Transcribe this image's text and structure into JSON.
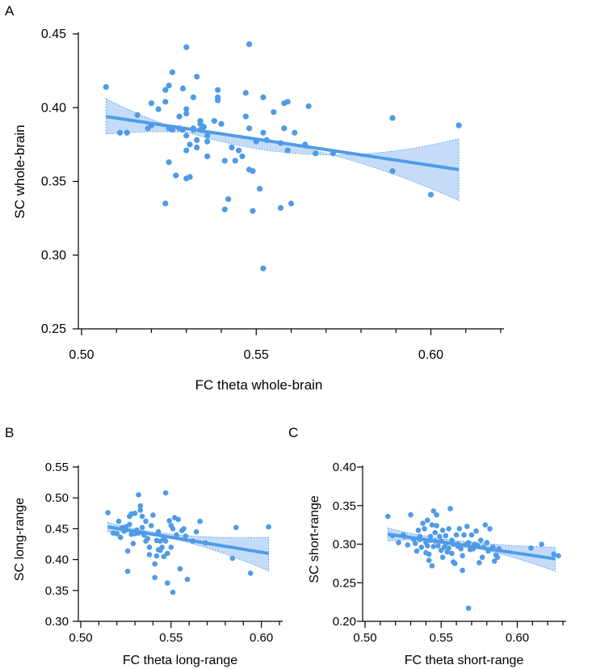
{
  "colors": {
    "point": "#4f9be8",
    "line": "#4f9be8",
    "band_fill": "#c5dcf8",
    "band_edge": "#4f9be8",
    "axis": "#000000"
  },
  "chart_data": [
    {
      "panel": "A",
      "type": "scatter",
      "xlabel": "FC theta whole-brain",
      "ylabel": "SC whole-brain",
      "xlim": [
        0.5,
        0.62
      ],
      "ylim": [
        0.25,
        0.45
      ],
      "xticks": [
        "0.50",
        "0.55",
        "0.60"
      ],
      "yticks": [
        "0.25",
        "0.30",
        "0.35",
        "0.40",
        "0.45"
      ],
      "x_minor_step": 0.01,
      "fit": {
        "x": [
          0.507,
          0.608
        ],
        "y": [
          0.394,
          0.358
        ],
        "ci_upper": [
          0.406,
          0.379
        ],
        "ci_lower": [
          0.382,
          0.337
        ],
        "ci_mid": [
          0.556,
          0.37,
          0.376
        ]
      },
      "points": [
        [
          0.507,
          0.414
        ],
        [
          0.511,
          0.383
        ],
        [
          0.513,
          0.383
        ],
        [
          0.516,
          0.395
        ],
        [
          0.519,
          0.386
        ],
        [
          0.52,
          0.403
        ],
        [
          0.52,
          0.388
        ],
        [
          0.522,
          0.399
        ],
        [
          0.524,
          0.335
        ],
        [
          0.524,
          0.404
        ],
        [
          0.524,
          0.412
        ],
        [
          0.525,
          0.415
        ],
        [
          0.525,
          0.386
        ],
        [
          0.525,
          0.363
        ],
        [
          0.526,
          0.385
        ],
        [
          0.526,
          0.424
        ],
        [
          0.527,
          0.354
        ],
        [
          0.528,
          0.386
        ],
        [
          0.528,
          0.394
        ],
        [
          0.529,
          0.413
        ],
        [
          0.529,
          0.385
        ],
        [
          0.53,
          0.441
        ],
        [
          0.53,
          0.399
        ],
        [
          0.53,
          0.396
        ],
        [
          0.53,
          0.381
        ],
        [
          0.53,
          0.371
        ],
        [
          0.53,
          0.352
        ],
        [
          0.531,
          0.375
        ],
        [
          0.531,
          0.353
        ],
        [
          0.532,
          0.385
        ],
        [
          0.532,
          0.407
        ],
        [
          0.532,
          0.386
        ],
        [
          0.533,
          0.421
        ],
        [
          0.533,
          0.378
        ],
        [
          0.533,
          0.373
        ],
        [
          0.534,
          0.389
        ],
        [
          0.534,
          0.391
        ],
        [
          0.534,
          0.385
        ],
        [
          0.535,
          0.387
        ],
        [
          0.536,
          0.381
        ],
        [
          0.536,
          0.377
        ],
        [
          0.536,
          0.367
        ],
        [
          0.538,
          0.391
        ],
        [
          0.539,
          0.405
        ],
        [
          0.539,
          0.407
        ],
        [
          0.539,
          0.412
        ],
        [
          0.54,
          0.389
        ],
        [
          0.541,
          0.364
        ],
        [
          0.541,
          0.331
        ],
        [
          0.542,
          0.338
        ],
        [
          0.543,
          0.373
        ],
        [
          0.544,
          0.364
        ],
        [
          0.545,
          0.371
        ],
        [
          0.546,
          0.367
        ],
        [
          0.547,
          0.41
        ],
        [
          0.547,
          0.394
        ],
        [
          0.548,
          0.386
        ],
        [
          0.548,
          0.358
        ],
        [
          0.548,
          0.443
        ],
        [
          0.549,
          0.33
        ],
        [
          0.549,
          0.357
        ],
        [
          0.55,
          0.377
        ],
        [
          0.551,
          0.345
        ],
        [
          0.552,
          0.383
        ],
        [
          0.552,
          0.291
        ],
        [
          0.552,
          0.407
        ],
        [
          0.553,
          0.378
        ],
        [
          0.555,
          0.397
        ],
        [
          0.557,
          0.332
        ],
        [
          0.557,
          0.376
        ],
        [
          0.558,
          0.386
        ],
        [
          0.558,
          0.403
        ],
        [
          0.559,
          0.404
        ],
        [
          0.559,
          0.371
        ],
        [
          0.56,
          0.335
        ],
        [
          0.561,
          0.383
        ],
        [
          0.564,
          0.375
        ],
        [
          0.565,
          0.401
        ],
        [
          0.567,
          0.369
        ],
        [
          0.572,
          0.369
        ],
        [
          0.589,
          0.357
        ],
        [
          0.589,
          0.393
        ],
        [
          0.6,
          0.341
        ],
        [
          0.608,
          0.388
        ]
      ]
    },
    {
      "panel": "B",
      "type": "scatter",
      "xlabel": "FC theta long-range",
      "ylabel": "SC long-range",
      "xlim": [
        0.5,
        0.61
      ],
      "ylim": [
        0.3,
        0.55
      ],
      "xticks": [
        "0.50",
        "0.55",
        "0.60"
      ],
      "yticks": [
        "0.30",
        "0.35",
        "0.40",
        "0.45",
        "0.50",
        "0.55"
      ],
      "x_minor_step": 0.01,
      "fit": {
        "x": [
          0.515,
          0.604
        ],
        "y": [
          0.453,
          0.41
        ],
        "ci_upper": [
          0.46,
          0.436
        ],
        "ci_lower": [
          0.445,
          0.382
        ],
        "ci_mid": [
          0.548,
          0.44,
          0.432
        ]
      },
      "points": [
        [
          0.515,
          0.476
        ],
        [
          0.518,
          0.443
        ],
        [
          0.52,
          0.442
        ],
        [
          0.521,
          0.462
        ],
        [
          0.522,
          0.436
        ],
        [
          0.523,
          0.452
        ],
        [
          0.524,
          0.446
        ],
        [
          0.525,
          0.453
        ],
        [
          0.526,
          0.414
        ],
        [
          0.526,
          0.381
        ],
        [
          0.527,
          0.457
        ],
        [
          0.527,
          0.47
        ],
        [
          0.528,
          0.474
        ],
        [
          0.528,
          0.441
        ],
        [
          0.529,
          0.426
        ],
        [
          0.53,
          0.475
        ],
        [
          0.53,
          0.442
        ],
        [
          0.531,
          0.448
        ],
        [
          0.532,
          0.443
        ],
        [
          0.532,
          0.505
        ],
        [
          0.533,
          0.487
        ],
        [
          0.533,
          0.48
        ],
        [
          0.534,
          0.47
        ],
        [
          0.534,
          0.452
        ],
        [
          0.535,
          0.443
        ],
        [
          0.535,
          0.44
        ],
        [
          0.536,
          0.43
        ],
        [
          0.536,
          0.462
        ],
        [
          0.537,
          0.434
        ],
        [
          0.538,
          0.408
        ],
        [
          0.538,
          0.42
        ],
        [
          0.539,
          0.455
        ],
        [
          0.54,
          0.472
        ],
        [
          0.541,
          0.393
        ],
        [
          0.541,
          0.371
        ],
        [
          0.542,
          0.431
        ],
        [
          0.542,
          0.406
        ],
        [
          0.543,
          0.416
        ],
        [
          0.543,
          0.445
        ],
        [
          0.544,
          0.43
        ],
        [
          0.544,
          0.415
        ],
        [
          0.545,
          0.42
        ],
        [
          0.546,
          0.405
        ],
        [
          0.546,
          0.435
        ],
        [
          0.547,
          0.508
        ],
        [
          0.547,
          0.43
        ],
        [
          0.548,
          0.362
        ],
        [
          0.548,
          0.41
        ],
        [
          0.549,
          0.463
        ],
        [
          0.55,
          0.42
        ],
        [
          0.55,
          0.455
        ],
        [
          0.551,
          0.45
        ],
        [
          0.551,
          0.347
        ],
        [
          0.552,
          0.468
        ],
        [
          0.553,
          0.44
        ],
        [
          0.554,
          0.465
        ],
        [
          0.555,
          0.385
        ],
        [
          0.556,
          0.447
        ],
        [
          0.557,
          0.45
        ],
        [
          0.558,
          0.438
        ],
        [
          0.559,
          0.368
        ],
        [
          0.562,
          0.43
        ],
        [
          0.564,
          0.445
        ],
        [
          0.566,
          0.462
        ],
        [
          0.569,
          0.427
        ],
        [
          0.584,
          0.402
        ],
        [
          0.586,
          0.452
        ],
        [
          0.594,
          0.378
        ],
        [
          0.604,
          0.453
        ]
      ]
    },
    {
      "panel": "C",
      "type": "scatter",
      "xlabel": "FC theta short-range",
      "ylabel": "SC short-range",
      "xlim": [
        0.5,
        0.63
      ],
      "ylim": [
        0.2,
        0.4
      ],
      "xticks": [
        "0.50",
        "0.55",
        "0.60"
      ],
      "yticks": [
        "0.20",
        "0.25",
        "0.30",
        "0.35",
        "0.40"
      ],
      "x_minor_step": 0.01,
      "fit": {
        "x": [
          0.515,
          0.625
        ],
        "y": [
          0.313,
          0.281
        ],
        "ci_upper": [
          0.321,
          0.296
        ],
        "ci_lower": [
          0.304,
          0.265
        ],
        "ci_mid": [
          0.556,
          0.304,
          0.299
        ]
      },
      "points": [
        [
          0.515,
          0.336
        ],
        [
          0.518,
          0.311
        ],
        [
          0.522,
          0.302
        ],
        [
          0.525,
          0.312
        ],
        [
          0.526,
          0.31
        ],
        [
          0.528,
          0.299
        ],
        [
          0.53,
          0.338
        ],
        [
          0.532,
          0.306
        ],
        [
          0.533,
          0.301
        ],
        [
          0.534,
          0.291
        ],
        [
          0.535,
          0.318
        ],
        [
          0.536,
          0.31
        ],
        [
          0.536,
          0.306
        ],
        [
          0.537,
          0.296
        ],
        [
          0.538,
          0.327
        ],
        [
          0.539,
          0.32
        ],
        [
          0.54,
          0.302
        ],
        [
          0.54,
          0.289
        ],
        [
          0.541,
          0.298
        ],
        [
          0.541,
          0.331
        ],
        [
          0.542,
          0.279
        ],
        [
          0.542,
          0.287
        ],
        [
          0.543,
          0.31
        ],
        [
          0.543,
          0.305
        ],
        [
          0.544,
          0.325
        ],
        [
          0.544,
          0.272
        ],
        [
          0.545,
          0.297
        ],
        [
          0.545,
          0.343
        ],
        [
          0.546,
          0.315
        ],
        [
          0.546,
          0.304
        ],
        [
          0.547,
          0.324
        ],
        [
          0.547,
          0.338
        ],
        [
          0.548,
          0.298
        ],
        [
          0.549,
          0.31
        ],
        [
          0.55,
          0.304
        ],
        [
          0.55,
          0.292
        ],
        [
          0.551,
          0.318
        ],
        [
          0.551,
          0.283
        ],
        [
          0.552,
          0.296
        ],
        [
          0.553,
          0.311
        ],
        [
          0.553,
          0.301
        ],
        [
          0.554,
          0.29
        ],
        [
          0.555,
          0.295
        ],
        [
          0.555,
          0.32
        ],
        [
          0.556,
          0.346
        ],
        [
          0.557,
          0.305
        ],
        [
          0.557,
          0.288
        ],
        [
          0.558,
          0.277
        ],
        [
          0.558,
          0.3
        ],
        [
          0.559,
          0.275
        ],
        [
          0.56,
          0.312
        ],
        [
          0.561,
          0.3
        ],
        [
          0.561,
          0.297
        ],
        [
          0.562,
          0.32
        ],
        [
          0.563,
          0.294
        ],
        [
          0.564,
          0.285
        ],
        [
          0.564,
          0.266
        ],
        [
          0.565,
          0.312
        ],
        [
          0.566,
          0.299
        ],
        [
          0.567,
          0.323
        ],
        [
          0.568,
          0.302
        ],
        [
          0.568,
          0.217
        ],
        [
          0.569,
          0.293
        ],
        [
          0.57,
          0.312
        ],
        [
          0.571,
          0.294
        ],
        [
          0.572,
          0.3
        ],
        [
          0.573,
          0.317
        ],
        [
          0.574,
          0.298
        ],
        [
          0.575,
          0.276
        ],
        [
          0.576,
          0.305
        ],
        [
          0.577,
          0.283
        ],
        [
          0.578,
          0.296
        ],
        [
          0.579,
          0.325
        ],
        [
          0.58,
          0.302
        ],
        [
          0.581,
          0.291
        ],
        [
          0.582,
          0.32
        ],
        [
          0.584,
          0.296
        ],
        [
          0.585,
          0.278
        ],
        [
          0.586,
          0.286
        ],
        [
          0.587,
          0.283
        ],
        [
          0.588,
          0.294
        ],
        [
          0.609,
          0.295
        ],
        [
          0.616,
          0.3
        ],
        [
          0.624,
          0.287
        ],
        [
          0.627,
          0.285
        ]
      ]
    }
  ]
}
